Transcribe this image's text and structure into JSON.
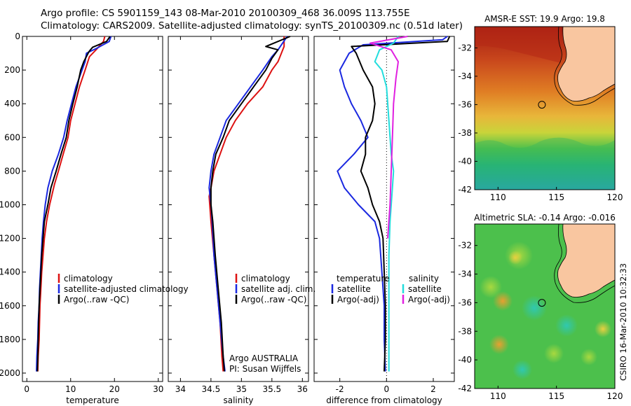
{
  "header": {
    "line1": "Argo profile: CS 5901159_143 08-Mar-2010 20100309_468 36.009S 113.755E",
    "line2": "Climatology: CARS2009. Satellite-adjusted climatology: synTS_20100309.nc (0.51d later)"
  },
  "credit": "CSIRO 16-Mar-2010 10:32:33",
  "colors": {
    "climatology": "#dd1111",
    "satellite": "#1a28e0",
    "argo": "#000000",
    "sal_satellite": "#22dddd",
    "sal_argo": "#e020e0",
    "land": "#f9c6a0"
  },
  "chart_data": [
    {
      "type": "line",
      "title": "",
      "xlabel": "temperature",
      "ylabel": "",
      "xlim": [
        -1,
        31
      ],
      "ylim": [
        2050,
        0
      ],
      "xticks": [
        0,
        10,
        20,
        30
      ],
      "yticks": [
        0,
        200,
        400,
        600,
        800,
        1000,
        1200,
        1400,
        1600,
        1800,
        2000
      ],
      "legend": {
        "position": "bottom-left",
        "entries": [
          "climatology",
          "satellite-adjusted climatology",
          "Argo(..raw -QC)"
        ]
      },
      "series": [
        {
          "name": "climatology",
          "color": "#dd1111",
          "points": [
            [
              17.8,
              0
            ],
            [
              17.5,
              30
            ],
            [
              15.8,
              80
            ],
            [
              14.3,
              120
            ],
            [
              13.3,
              200
            ],
            [
              12.0,
              300
            ],
            [
              11.0,
              400
            ],
            [
              10.0,
              500
            ],
            [
              9.4,
              600
            ],
            [
              8.3,
              700
            ],
            [
              7.2,
              800
            ],
            [
              6.3,
              880
            ],
            [
              5.2,
              1000
            ],
            [
              4.5,
              1100
            ],
            [
              4.0,
              1200
            ],
            [
              3.7,
              1300
            ],
            [
              3.4,
              1400
            ],
            [
              3.2,
              1500
            ],
            [
              3.0,
              1600
            ],
            [
              2.9,
              1700
            ],
            [
              2.8,
              1800
            ],
            [
              2.6,
              1900
            ],
            [
              2.5,
              1990
            ]
          ]
        },
        {
          "name": "satellite-adjusted climatology",
          "color": "#1a28e0",
          "points": [
            [
              19.2,
              0
            ],
            [
              18.8,
              30
            ],
            [
              16.0,
              70
            ],
            [
              13.6,
              100
            ],
            [
              13.3,
              150
            ],
            [
              12.6,
              200
            ],
            [
              11.2,
              300
            ],
            [
              10.2,
              400
            ],
            [
              9.2,
              500
            ],
            [
              8.4,
              600
            ],
            [
              7.2,
              700
            ],
            [
              5.8,
              800
            ],
            [
              4.8,
              900
            ],
            [
              4.2,
              1000
            ],
            [
              3.8,
              1100
            ],
            [
              3.5,
              1200
            ],
            [
              3.3,
              1300
            ],
            [
              3.1,
              1400
            ],
            [
              2.9,
              1500
            ],
            [
              2.8,
              1600
            ],
            [
              2.6,
              1700
            ],
            [
              2.5,
              1800
            ],
            [
              2.3,
              1900
            ],
            [
              2.2,
              1990
            ]
          ]
        },
        {
          "name": "Argo(..raw -QC)",
          "color": "#000000",
          "points": [
            [
              19.0,
              0
            ],
            [
              18.2,
              30
            ],
            [
              15.0,
              65
            ],
            [
              14.2,
              90
            ],
            [
              13.0,
              150
            ],
            [
              12.3,
              200
            ],
            [
              11.5,
              300
            ],
            [
              10.5,
              400
            ],
            [
              9.6,
              500
            ],
            [
              9.0,
              600
            ],
            [
              7.8,
              700
            ],
            [
              6.7,
              800
            ],
            [
              5.5,
              900
            ],
            [
              4.8,
              1000
            ],
            [
              4.0,
              1100
            ],
            [
              3.7,
              1200
            ],
            [
              3.4,
              1300
            ],
            [
              3.2,
              1400
            ],
            [
              3.0,
              1500
            ],
            [
              2.8,
              1600
            ],
            [
              2.7,
              1700
            ],
            [
              2.6,
              1800
            ],
            [
              2.5,
              1900
            ],
            [
              2.4,
              1990
            ]
          ]
        }
      ]
    },
    {
      "type": "line",
      "title": "",
      "xlabel": "salinity",
      "ylabel": "",
      "xlim": [
        33.8,
        36.1
      ],
      "ylim": [
        2050,
        0
      ],
      "xticks": [
        34,
        34.5,
        35,
        35.5,
        36
      ],
      "yticks": [],
      "legend": {
        "position": "bottom-right",
        "entries": [
          "climatology",
          "satellite adj. clim.",
          "Argo(..raw -QC)"
        ]
      },
      "annotation": [
        "Argo AUSTRALIA",
        "PI: Susan Wijffels"
      ],
      "series": [
        {
          "name": "climatology",
          "color": "#dd1111",
          "points": [
            [
              35.7,
              0
            ],
            [
              35.7,
              60
            ],
            [
              35.6,
              150
            ],
            [
              35.5,
              200
            ],
            [
              35.35,
              300
            ],
            [
              35.1,
              400
            ],
            [
              34.9,
              500
            ],
            [
              34.75,
              600
            ],
            [
              34.65,
              700
            ],
            [
              34.55,
              800
            ],
            [
              34.5,
              900
            ],
            [
              34.47,
              950
            ],
            [
              34.5,
              1100
            ],
            [
              34.55,
              1300
            ],
            [
              34.6,
              1500
            ],
            [
              34.65,
              1700
            ],
            [
              34.68,
              1900
            ],
            [
              34.7,
              1990
            ]
          ]
        },
        {
          "name": "satellite adj. clim.",
          "color": "#1a28e0",
          "points": [
            [
              35.75,
              0
            ],
            [
              35.6,
              80
            ],
            [
              35.5,
              120
            ],
            [
              35.35,
              200
            ],
            [
              35.15,
              300
            ],
            [
              34.95,
              400
            ],
            [
              34.75,
              500
            ],
            [
              34.65,
              600
            ],
            [
              34.55,
              700
            ],
            [
              34.5,
              800
            ],
            [
              34.47,
              900
            ],
            [
              34.5,
              1000
            ],
            [
              34.52,
              1100
            ],
            [
              34.55,
              1300
            ],
            [
              34.6,
              1500
            ],
            [
              34.65,
              1700
            ],
            [
              34.7,
              1900
            ],
            [
              34.73,
              1990
            ]
          ]
        },
        {
          "name": "Argo(..raw -QC)",
          "color": "#000000",
          "points": [
            [
              35.8,
              0
            ],
            [
              35.4,
              60
            ],
            [
              35.6,
              80
            ],
            [
              35.5,
              130
            ],
            [
              35.4,
              200
            ],
            [
              35.2,
              300
            ],
            [
              35.0,
              400
            ],
            [
              34.8,
              500
            ],
            [
              34.7,
              600
            ],
            [
              34.58,
              700
            ],
            [
              34.53,
              800
            ],
            [
              34.5,
              900
            ],
            [
              34.5,
              1000
            ],
            [
              34.53,
              1100
            ],
            [
              34.57,
              1300
            ],
            [
              34.62,
              1500
            ],
            [
              34.67,
              1700
            ],
            [
              34.7,
              1900
            ],
            [
              34.72,
              1990
            ]
          ]
        }
      ]
    },
    {
      "type": "line",
      "title": "",
      "xlabel": "difference from climatology",
      "ylabel": "",
      "xlim": [
        -3.1,
        2.9
      ],
      "ylim": [
        2050,
        0
      ],
      "xticks": [
        -2,
        0,
        2
      ],
      "yticks": [],
      "legend": {
        "position": "bottom-right",
        "groups": [
          {
            "heading": "temperature",
            "entries": [
              "satellite",
              "Argo(-adj)"
            ]
          },
          {
            "heading": "salinity",
            "entries": [
              "satellite",
              "Argo(-adj)"
            ]
          }
        ]
      },
      "series": [
        {
          "name": "temperature satellite",
          "color": "#1a28e0",
          "points": [
            [
              2.6,
              0
            ],
            [
              2.4,
              20
            ],
            [
              -1.0,
              50
            ],
            [
              -1.6,
              100
            ],
            [
              -2.0,
              200
            ],
            [
              -1.8,
              300
            ],
            [
              -1.5,
              400
            ],
            [
              -1.1,
              500
            ],
            [
              -0.8,
              600
            ],
            [
              -1.4,
              700
            ],
            [
              -2.1,
              800
            ],
            [
              -1.8,
              900
            ],
            [
              -1.2,
              1000
            ],
            [
              -0.5,
              1100
            ],
            [
              -0.3,
              1200
            ],
            [
              -0.2,
              1400
            ],
            [
              -0.1,
              1600
            ],
            [
              -0.1,
              1800
            ],
            [
              -0.05,
              1990
            ]
          ]
        },
        {
          "name": "temperature Argo(-adj)",
          "color": "#000000",
          "points": [
            [
              2.7,
              0
            ],
            [
              2.6,
              30
            ],
            [
              -1.5,
              60
            ],
            [
              -1.3,
              100
            ],
            [
              -1.0,
              200
            ],
            [
              -0.6,
              300
            ],
            [
              -0.5,
              400
            ],
            [
              -0.6,
              500
            ],
            [
              -0.9,
              600
            ],
            [
              -0.9,
              700
            ],
            [
              -1.1,
              800
            ],
            [
              -0.8,
              900
            ],
            [
              -0.6,
              1000
            ],
            [
              -0.3,
              1100
            ],
            [
              -0.15,
              1200
            ],
            [
              -0.1,
              1400
            ],
            [
              -0.05,
              1600
            ],
            [
              -0.05,
              1800
            ],
            [
              -0.1,
              1990
            ]
          ]
        },
        {
          "name": "salinity satellite",
          "color": "#22dddd",
          "points": [
            [
              0.5,
              0
            ],
            [
              0.3,
              40
            ],
            [
              -0.3,
              80
            ],
            [
              -0.5,
              150
            ],
            [
              -0.2,
              200
            ],
            [
              0.0,
              300
            ],
            [
              0.1,
              500
            ],
            [
              0.2,
              700
            ],
            [
              0.3,
              800
            ],
            [
              0.25,
              900
            ],
            [
              0.15,
              1100
            ],
            [
              0.1,
              1300
            ],
            [
              0.1,
              1500
            ],
            [
              0.1,
              1700
            ],
            [
              0.1,
              1990
            ]
          ]
        },
        {
          "name": "salinity Argo(-adj)",
          "color": "#e020e0",
          "points": [
            [
              0.9,
              0
            ],
            [
              -0.7,
              40
            ],
            [
              0.2,
              80
            ],
            [
              0.5,
              150
            ],
            [
              0.4,
              250
            ],
            [
              0.3,
              400
            ],
            [
              0.25,
              600
            ],
            [
              0.2,
              800
            ],
            [
              0.15,
              1000
            ],
            [
              0.05,
              1200
            ]
          ]
        }
      ]
    },
    {
      "type": "heatmap",
      "title": "AMSR-E SST: 19.9 Argo: 19.8",
      "xlim": [
        108,
        120
      ],
      "ylim": [
        -42,
        -30.5
      ],
      "xticks": [
        110,
        115,
        120
      ],
      "yticks": [
        -32,
        -34,
        -36,
        -38,
        -40,
        -42
      ],
      "marker": {
        "lon": 113.755,
        "lat": -36.009
      }
    },
    {
      "type": "heatmap",
      "title": "Altimetric SLA: -0.14 Argo: -0.016",
      "xlim": [
        108,
        120
      ],
      "ylim": [
        -42,
        -30.5
      ],
      "xticks": [
        110,
        115,
        120
      ],
      "yticks": [
        -32,
        -34,
        -36,
        -38,
        -40,
        -42
      ],
      "marker": {
        "lon": 113.755,
        "lat": -36.009
      }
    }
  ]
}
